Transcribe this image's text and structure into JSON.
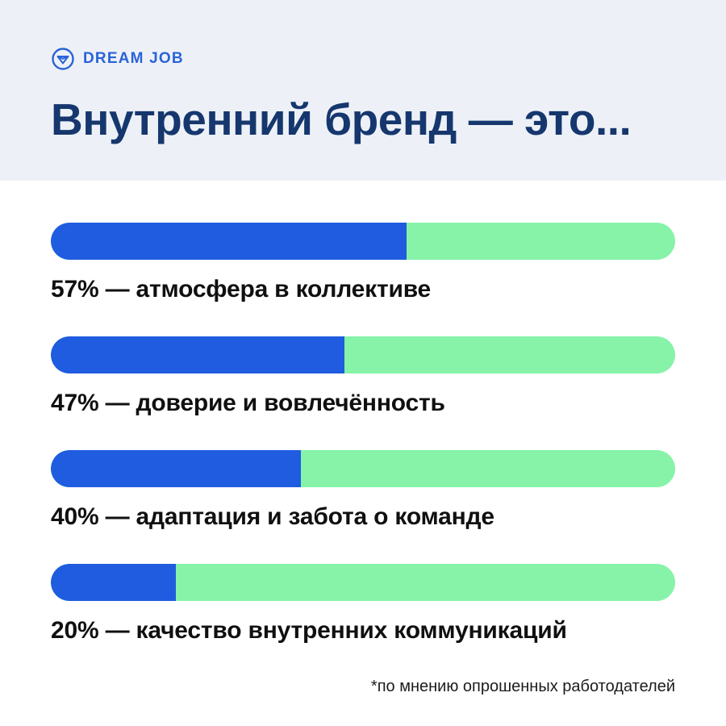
{
  "logo": {
    "text": "DREAM JOB",
    "icon": "dreamjob-circle-gem-icon"
  },
  "header": {
    "title": "Внутренний бренд — это..."
  },
  "colors": {
    "header_bg": "#edf1f7",
    "title_text": "#16376e",
    "bar_fill": "#1f5ce0",
    "bar_track": "#86f3a9",
    "logo_blue": "#2a63d8"
  },
  "chart_data": {
    "type": "bar",
    "orientation": "horizontal",
    "title": "Внутренний бренд — это...",
    "unit": "%",
    "xlim": [
      0,
      100
    ],
    "grid": false,
    "legend": false,
    "categories": [
      "атмосфера в коллективе",
      "доверие и вовлечённость",
      "адаптация и забота о команде",
      "качество внутренних коммуникаций"
    ],
    "values": [
      57,
      47,
      40,
      20
    ],
    "labels": [
      "57% — атмосфера в коллективе",
      "47% — доверие и вовлечённость",
      "40% — адаптация и забота о команде",
      "20% — качество внутренних коммуникаций"
    ]
  },
  "footnote": "*по мнению опрошенных работодателей"
}
